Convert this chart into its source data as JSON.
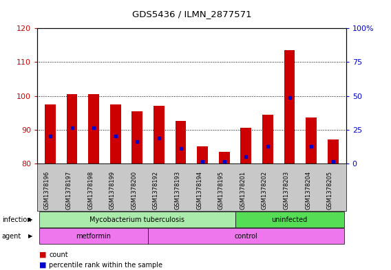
{
  "title": "GDS5436 / ILMN_2877571",
  "samples": [
    "GSM1378196",
    "GSM1378197",
    "GSM1378198",
    "GSM1378199",
    "GSM1378200",
    "GSM1378192",
    "GSM1378193",
    "GSM1378194",
    "GSM1378195",
    "GSM1378201",
    "GSM1378202",
    "GSM1378203",
    "GSM1378204",
    "GSM1378205"
  ],
  "bar_heights": [
    97.5,
    100.5,
    100.5,
    97.5,
    95.5,
    97.0,
    92.5,
    85.0,
    83.5,
    90.5,
    94.5,
    113.5,
    93.5,
    87.0
  ],
  "blue_positions": [
    88.0,
    90.5,
    90.5,
    88.0,
    86.5,
    87.5,
    84.5,
    80.5,
    80.5,
    82.0,
    85.0,
    99.5,
    85.0,
    80.5
  ],
  "ymin": 80,
  "ymax": 120,
  "yticks_left": [
    80,
    90,
    100,
    110,
    120
  ],
  "yticks_right": [
    0,
    25,
    50,
    75,
    100
  ],
  "left_color": "#cc0000",
  "right_color": "#0000cc",
  "bar_color": "#cc0000",
  "blue_color": "#0000cc",
  "bg_color": "#ffffff",
  "tick_bg": "#c8c8c8",
  "infection_segments": [
    {
      "text": "Mycobacterium tuberculosis",
      "start": 0,
      "end": 9,
      "color": "#aaeaaa"
    },
    {
      "text": "uninfected",
      "start": 9,
      "end": 14,
      "color": "#55dd55"
    }
  ],
  "agent_segments": [
    {
      "text": "metformin",
      "start": 0,
      "end": 5,
      "color": "#ee77ee"
    },
    {
      "text": "control",
      "start": 5,
      "end": 14,
      "color": "#ee77ee"
    }
  ],
  "infection_label": "infection",
  "agent_label": "agent",
  "legend_count": "count",
  "legend_pct": "percentile rank within the sample",
  "bar_width": 0.5
}
